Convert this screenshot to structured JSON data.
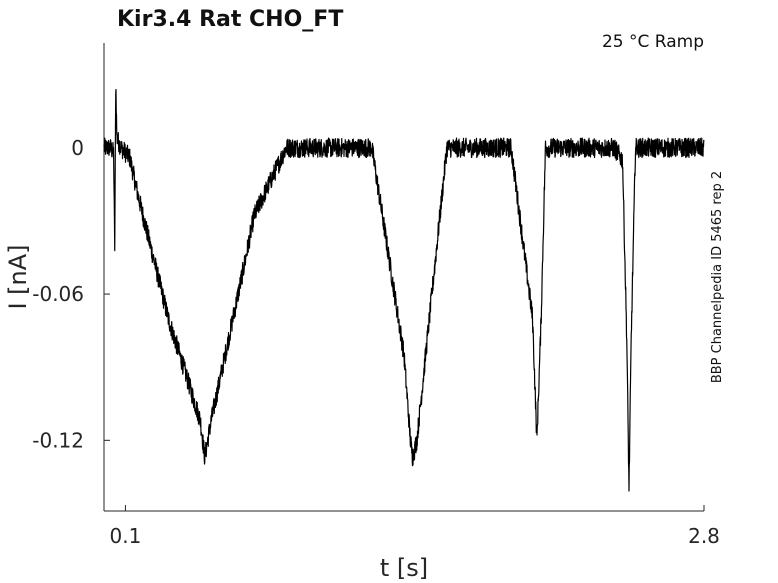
{
  "chart_data": {
    "type": "line",
    "title": "Kir3.4  Rat  CHO_FT",
    "subtitle": "25 °C  Ramp",
    "side_note": "BBP Channelpedia ID 5465 rep 2",
    "xlabel": "t [s]",
    "ylabel": "I [nA]",
    "xlim": [
      0.0,
      2.8
    ],
    "ylim": [
      -0.149,
      0.043
    ],
    "x_ticks": [
      {
        "value": 0.1,
        "label": "0.1"
      },
      {
        "value": 2.8,
        "label": "2.8"
      }
    ],
    "y_ticks": [
      {
        "value": 0,
        "label": "0"
      },
      {
        "value": -0.06,
        "label": "-0.06"
      },
      {
        "value": -0.12,
        "label": "-0.12"
      }
    ],
    "grid": false,
    "line_color": "#000000",
    "noise_amplitude": 0.004,
    "series": [
      {
        "name": "",
        "x": [
          0.0,
          0.03,
          0.045,
          0.05,
          0.055,
          0.06,
          0.08,
          0.12,
          0.16,
          0.3,
          0.45,
          0.47,
          0.5,
          0.65,
          0.7,
          0.85,
          1.1,
          1.25,
          1.4,
          1.43,
          1.44,
          1.46,
          1.6,
          1.63,
          1.65,
          1.75,
          1.9,
          2.0,
          2.02,
          2.04,
          2.06,
          2.25,
          2.38,
          2.42,
          2.44,
          2.45,
          2.46,
          2.48,
          2.52,
          2.56,
          2.62,
          2.66,
          2.7,
          2.75,
          2.8
        ],
        "y": [
          0.0,
          0.0,
          -0.002,
          -0.043,
          0.028,
          0.004,
          0.0,
          -0.004,
          -0.02,
          -0.07,
          -0.112,
          -0.127,
          -0.112,
          -0.05,
          -0.028,
          0.0,
          0.0,
          0.0,
          -0.085,
          -0.12,
          -0.127,
          -0.12,
          0.0,
          0.0,
          0.0,
          0.0,
          0.0,
          -0.07,
          -0.12,
          -0.07,
          0.0,
          0.0,
          0.0,
          -0.005,
          -0.08,
          -0.14,
          -0.08,
          0.0,
          0.0,
          0.0,
          0.0,
          0.0,
          0.0,
          0.0,
          0.0
        ]
      }
    ]
  }
}
